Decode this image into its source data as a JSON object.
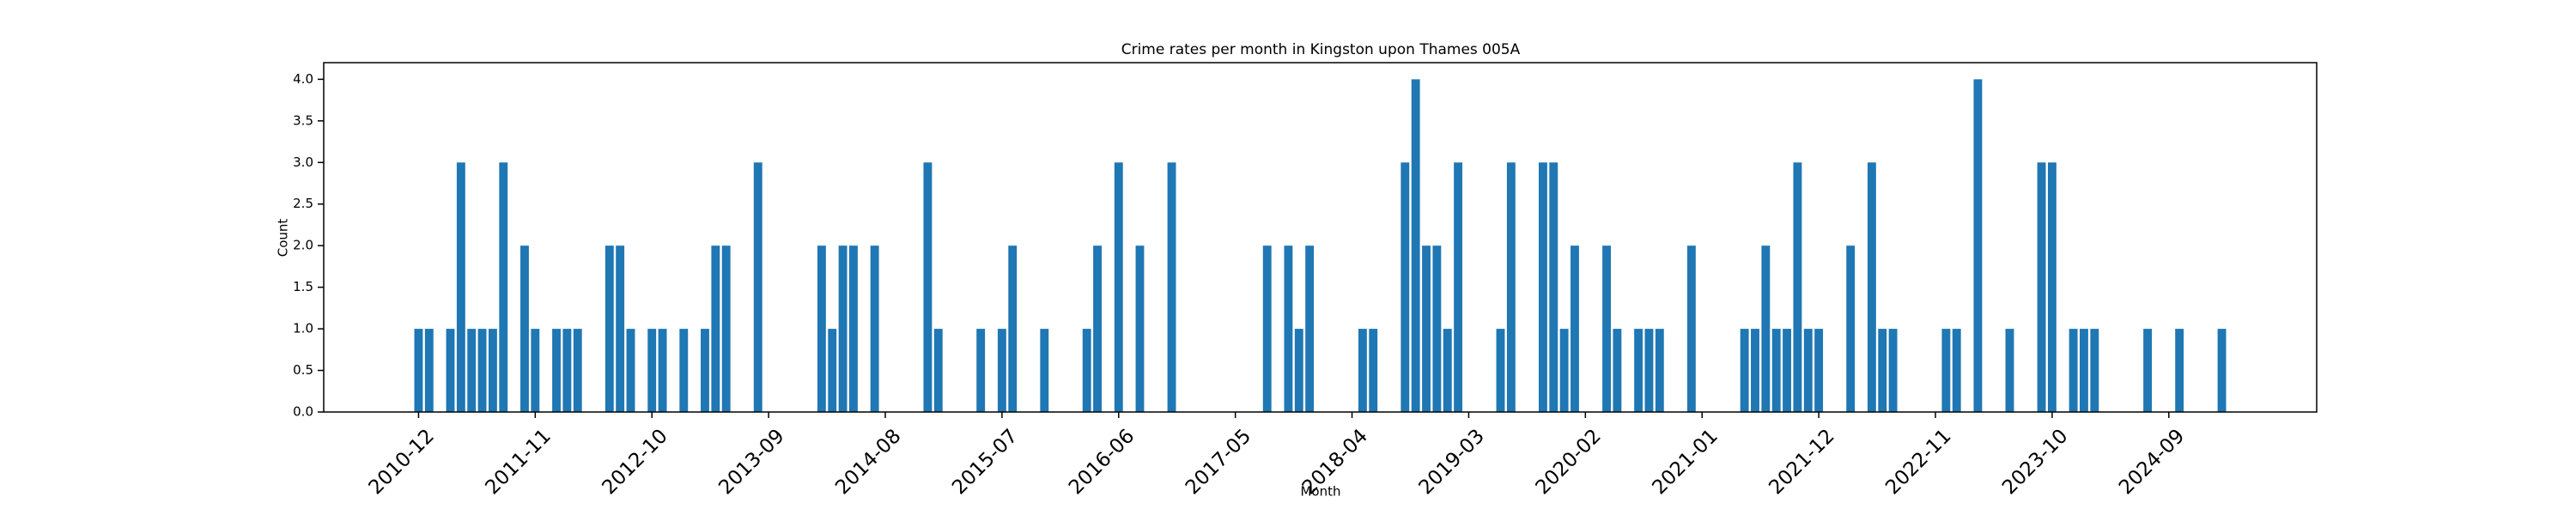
{
  "chart_data": {
    "type": "bar",
    "title": "Crime rates per month in Kingston upon Thames 005A",
    "xlabel": "Month",
    "ylabel": "Count",
    "color": "#1f77b4",
    "x": [
      "2010-12",
      "2011-01",
      "2011-03",
      "2011-04",
      "2011-05",
      "2011-06",
      "2011-07",
      "2011-08",
      "2011-10",
      "2011-11",
      "2012-01",
      "2012-02",
      "2012-03",
      "2012-06",
      "2012-07",
      "2012-08",
      "2012-10",
      "2012-11",
      "2013-01",
      "2013-03",
      "2013-04",
      "2013-05",
      "2013-08",
      "2014-02",
      "2014-03",
      "2014-04",
      "2014-05",
      "2014-07",
      "2014-12",
      "2015-01",
      "2015-05",
      "2015-07",
      "2015-08",
      "2015-11",
      "2016-03",
      "2016-04",
      "2016-06",
      "2016-08",
      "2016-11",
      "2017-08",
      "2017-10",
      "2017-11",
      "2017-12",
      "2018-05",
      "2018-06",
      "2018-09",
      "2018-10",
      "2018-11",
      "2018-12",
      "2019-01",
      "2019-02",
      "2019-06",
      "2019-07",
      "2019-10",
      "2019-11",
      "2019-12",
      "2020-01",
      "2020-04",
      "2020-05",
      "2020-07",
      "2020-08",
      "2020-09",
      "2020-12",
      "2021-05",
      "2021-06",
      "2021-07",
      "2021-08",
      "2021-09",
      "2021-10",
      "2021-11",
      "2021-12",
      "2022-03",
      "2022-05",
      "2022-06",
      "2022-07",
      "2022-12",
      "2023-01",
      "2023-03",
      "2023-06",
      "2023-09",
      "2023-10",
      "2023-12",
      "2024-01",
      "2024-02",
      "2024-07",
      "2024-10",
      "2025-02"
    ],
    "values": [
      1,
      1,
      1,
      3,
      1,
      1,
      1,
      3,
      2,
      1,
      1,
      1,
      1,
      2,
      2,
      1,
      1,
      1,
      1,
      1,
      2,
      2,
      3,
      2,
      1,
      2,
      2,
      2,
      3,
      1,
      1,
      1,
      2,
      1,
      1,
      2,
      3,
      2,
      3,
      2,
      2,
      1,
      2,
      1,
      1,
      3,
      4,
      2,
      2,
      1,
      3,
      1,
      3,
      3,
      3,
      1,
      2,
      2,
      1,
      1,
      1,
      1,
      2,
      1,
      1,
      2,
      1,
      1,
      3,
      1,
      1,
      2,
      3,
      1,
      1,
      1,
      1,
      4,
      1,
      3,
      3,
      1,
      1,
      1,
      1,
      1,
      1
    ],
    "xticks": [
      "2010-12",
      "2011-11",
      "2012-10",
      "2013-09",
      "2014-08",
      "2015-07",
      "2016-06",
      "2017-05",
      "2018-04",
      "2019-03",
      "2020-02",
      "2021-01",
      "2021-12",
      "2022-11",
      "2023-10",
      "2024-09"
    ],
    "ylim": [
      0,
      4.2
    ],
    "yticks": [
      {
        "value": 0,
        "label": "0.0"
      },
      {
        "value": 0.5,
        "label": "0.5"
      },
      {
        "value": 1,
        "label": "1.0"
      },
      {
        "value": 1.5,
        "label": "1.5"
      },
      {
        "value": 2,
        "label": "2.0"
      },
      {
        "value": 2.5,
        "label": "2.5"
      },
      {
        "value": 3,
        "label": "3.0"
      },
      {
        "value": 3.5,
        "label": "3.5"
      },
      {
        "value": 4,
        "label": "4.0"
      }
    ]
  }
}
